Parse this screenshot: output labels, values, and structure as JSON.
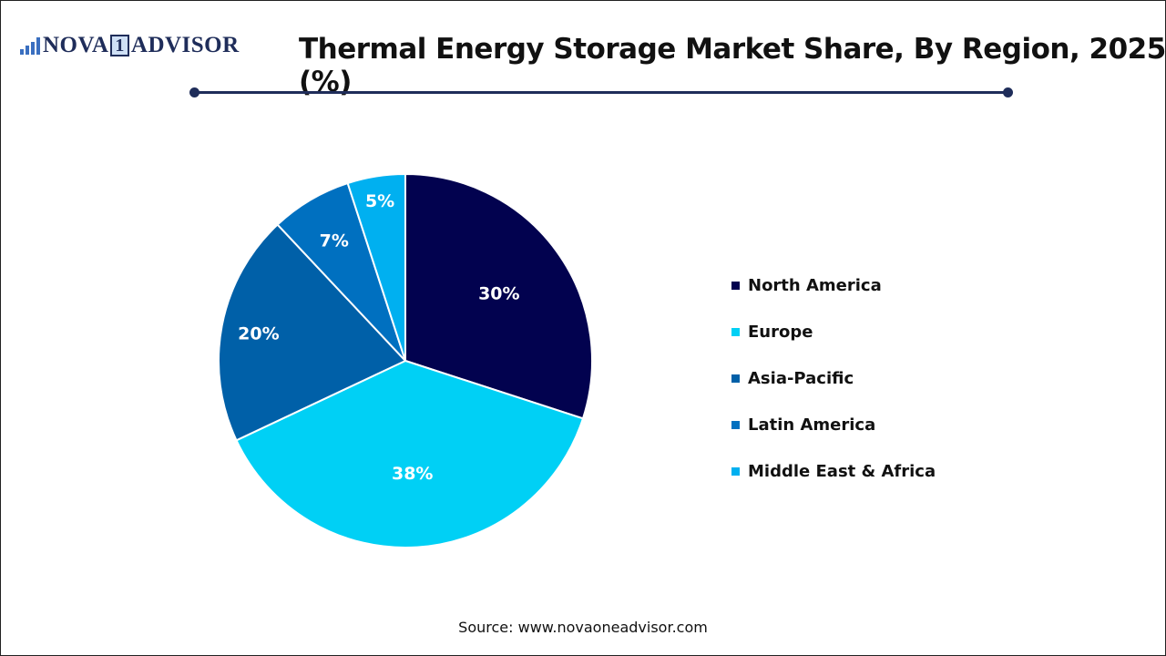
{
  "logo": {
    "left": "NOVA",
    "digit": "1",
    "right": "ADVISOR"
  },
  "header": {
    "title": "Thermal Energy Storage Market Share, By Region, 2025 (%)"
  },
  "footer": {
    "source": "Source: www.novaoneadvisor.com"
  },
  "legend": [
    {
      "label": "North America",
      "color": "#02024f"
    },
    {
      "label": "Europe",
      "color": "#00d0f5"
    },
    {
      "label": "Asia-Pacific",
      "color": "#0060a8"
    },
    {
      "label": "Latin America",
      "color": "#0070c0"
    },
    {
      "label": "Middle East & Africa",
      "color": "#00b0f0"
    }
  ],
  "chart_data": {
    "type": "pie",
    "title": "Thermal Energy Storage Market Share, By Region, 2025 (%)",
    "categories": [
      "North America",
      "Europe",
      "Asia-Pacific",
      "Latin America",
      "Middle East & Africa"
    ],
    "values": [
      30,
      38,
      20,
      7,
      5
    ],
    "labels": [
      "30%",
      "38%",
      "20%",
      "7%",
      "5%"
    ],
    "colors": [
      "#02024f",
      "#00d0f5",
      "#0060a8",
      "#0070c0",
      "#00b0f0"
    ],
    "start_angle": "12 o'clock, clockwise",
    "legend_position": "right"
  }
}
